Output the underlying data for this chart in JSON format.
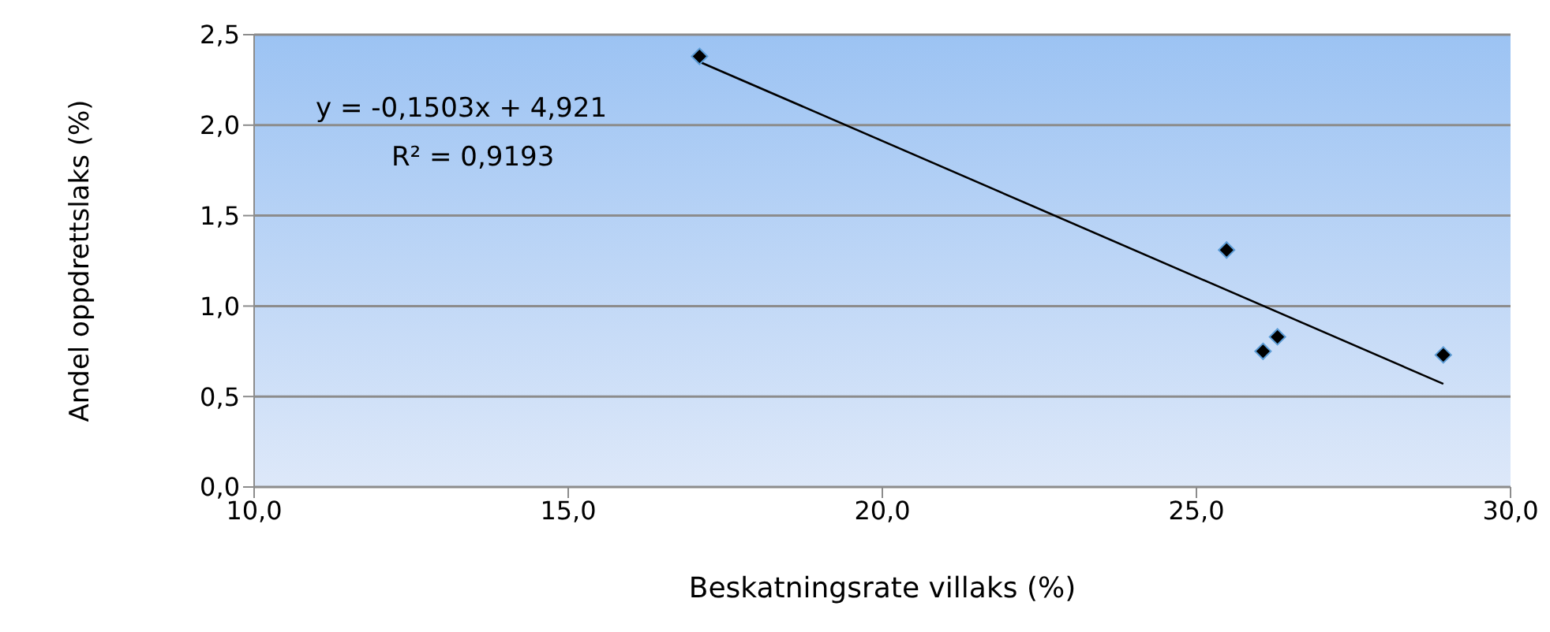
{
  "chart_data": {
    "type": "scatter",
    "xlabel": "Beskatningsrate villaks (%)",
    "ylabel": "Andel oppdrettslaks (%)",
    "xlim": [
      10,
      30
    ],
    "xticks": [
      {
        "value": 10,
        "label": "10,0"
      },
      {
        "value": 15,
        "label": "15,0"
      },
      {
        "value": 20,
        "label": "20,0"
      },
      {
        "value": 25,
        "label": "25,0"
      },
      {
        "value": 30,
        "label": "30,0"
      }
    ],
    "ylim": [
      0,
      2.5
    ],
    "yticks": [
      {
        "value": 0,
        "label": "0,0"
      },
      {
        "value": 0.5,
        "label": "0,5"
      },
      {
        "value": 1,
        "label": "1,0"
      },
      {
        "value": 1.5,
        "label": "1,5"
      },
      {
        "value": 2,
        "label": "2,0"
      },
      {
        "value": 2.5,
        "label": "2,5"
      }
    ],
    "grid": "y",
    "series": [
      {
        "color": "#000000",
        "marker": "diamond",
        "x": [
          17.09,
          25.48,
          26.06,
          26.29,
          28.93
        ],
        "values": [
          2.38,
          1.31,
          0.75,
          0.83,
          0.73
        ]
      },
      {
        "type": "line",
        "color": "#000000",
        "line_style": "solid",
        "marker": "none",
        "x": [
          17.09,
          28.93
        ],
        "values": [
          2.35,
          0.57
        ]
      }
    ],
    "annotations": [
      "y = -0,1503x + 4,921",
      "R² = 0,9193"
    ]
  }
}
